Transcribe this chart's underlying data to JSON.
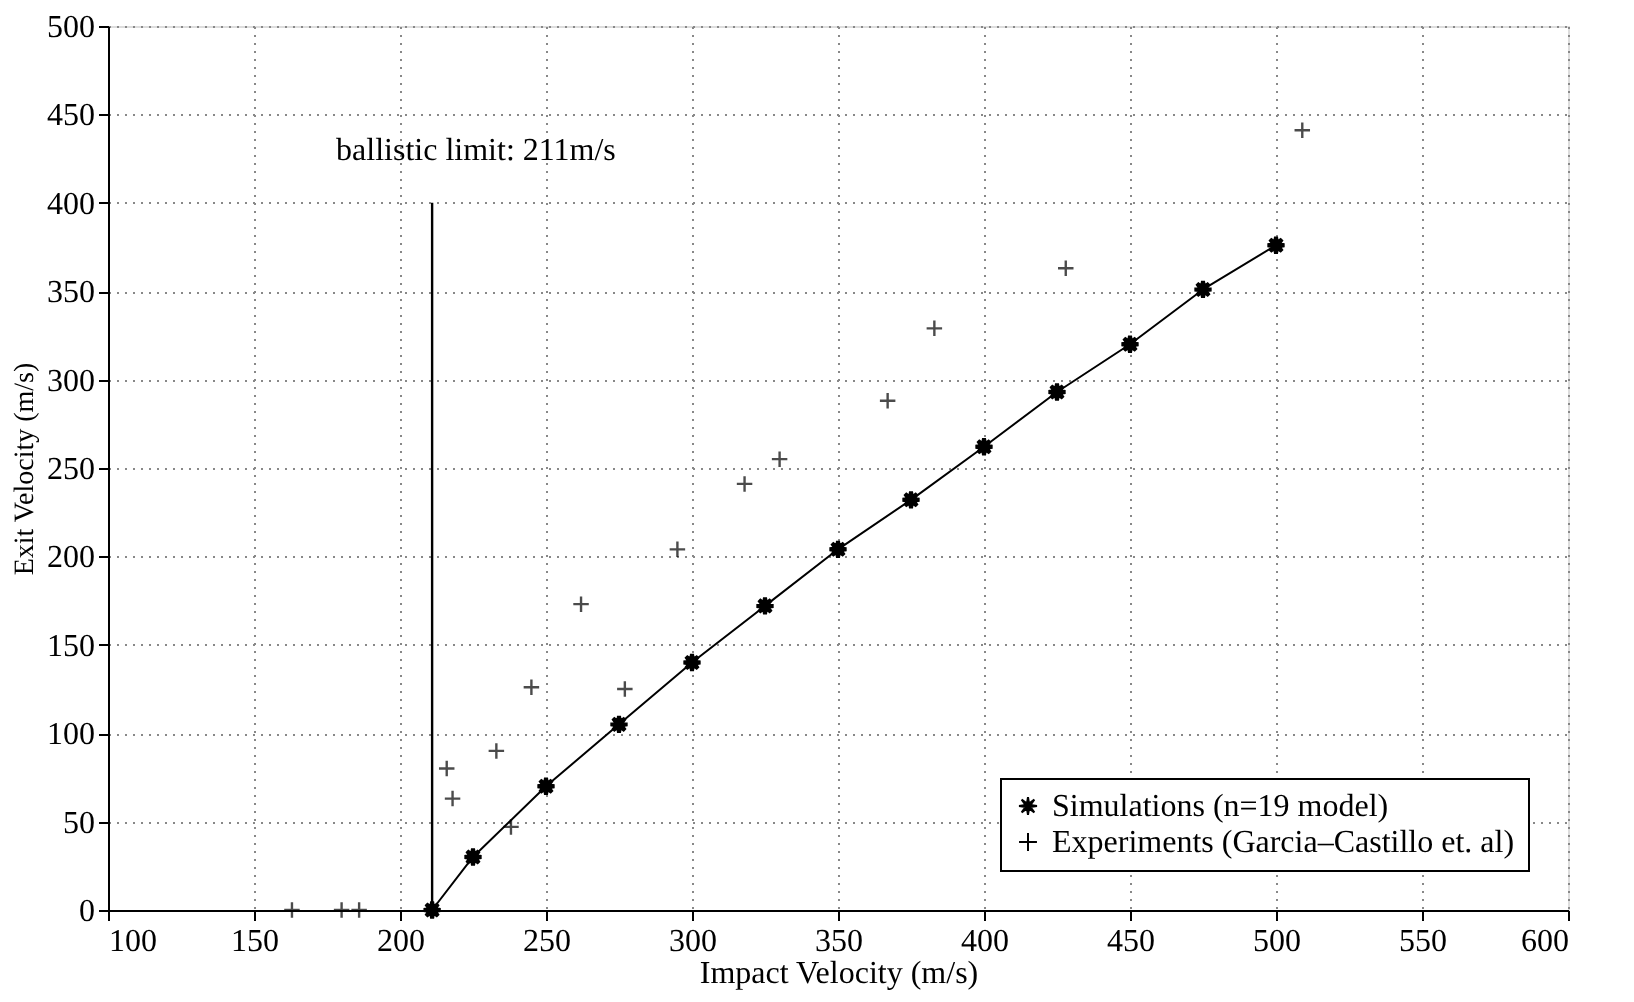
{
  "chart_data": {
    "type": "line",
    "xlabel": "Impact Velocity (m/s)",
    "ylabel": "Exit Velocity (m/s)",
    "xlim": [
      100,
      600
    ],
    "xticks": [
      100,
      150,
      200,
      250,
      300,
      350,
      400,
      450,
      500,
      550,
      600
    ],
    "ylim": [
      0,
      500
    ],
    "yticks": [
      0,
      50,
      100,
      150,
      200,
      250,
      300,
      350,
      400,
      450,
      500
    ],
    "grid": true,
    "legend": "bottom right",
    "series": [
      {
        "name": "Simulations (n=19 model)",
        "type": "line",
        "color": "#000000",
        "marker": "star",
        "line_style": "solid",
        "x": [
          211,
          225,
          250,
          275,
          300,
          325,
          350,
          375,
          400,
          425,
          450,
          475,
          500
        ],
        "values": [
          0,
          30,
          70,
          105,
          140,
          172,
          204,
          232,
          262,
          293,
          320,
          351,
          376
        ]
      },
      {
        "name": "Experiments (Garcia–Castillo et. al)",
        "type": "scatter",
        "color": "#000000",
        "marker": "cross",
        "x": [
          163,
          180,
          186,
          216,
          218,
          233,
          238,
          245,
          262,
          277,
          295,
          318,
          330,
          367,
          383,
          428,
          509
        ],
        "values": [
          0,
          0,
          0,
          80,
          63,
          90,
          47,
          126,
          173,
          125,
          204,
          241,
          255,
          288,
          329,
          363,
          441
        ]
      }
    ],
    "ref_lines": [
      {
        "axis": "x",
        "value": 211,
        "label": "ballistic limit: 211m/s",
        "color": "#000000",
        "line_style": "solid"
      }
    ]
  }
}
